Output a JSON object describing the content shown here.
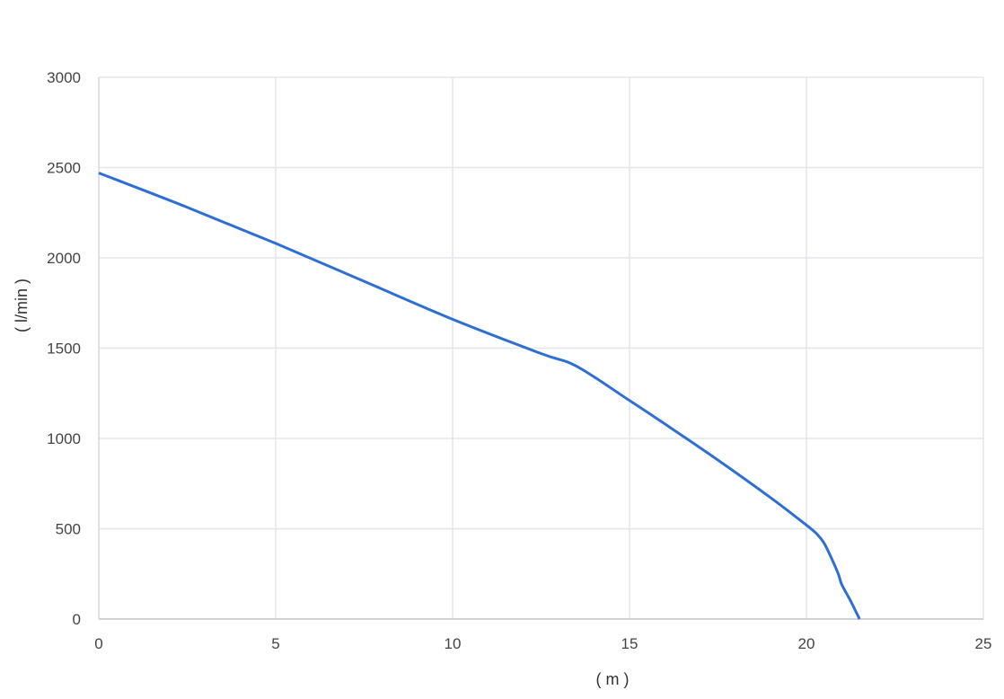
{
  "chart_data": {
    "type": "line",
    "title": "",
    "xlabel": "( m )",
    "ylabel": "( l/min )",
    "xlim": [
      0,
      25
    ],
    "ylim": [
      0,
      3000
    ],
    "xticks": [
      "0",
      "5",
      "10",
      "15",
      "20",
      "25"
    ],
    "yticks": [
      "0",
      "500",
      "1000",
      "1500",
      "2000",
      "2500",
      "3000"
    ],
    "grid": true,
    "line_color": "#2e6fd6",
    "series": [
      {
        "x": [
          0,
          2.5,
          5,
          7.5,
          10,
          12.5,
          13.5,
          15,
          16,
          17.5,
          19,
          20,
          20.3,
          20.5,
          20.7,
          20.9,
          21,
          21.25,
          21.5
        ],
        "values": [
          2470,
          2280,
          2080,
          1870,
          1660,
          1470,
          1400,
          1210,
          1080,
          880,
          670,
          520,
          470,
          420,
          340,
          250,
          190,
          100,
          0
        ]
      }
    ]
  }
}
